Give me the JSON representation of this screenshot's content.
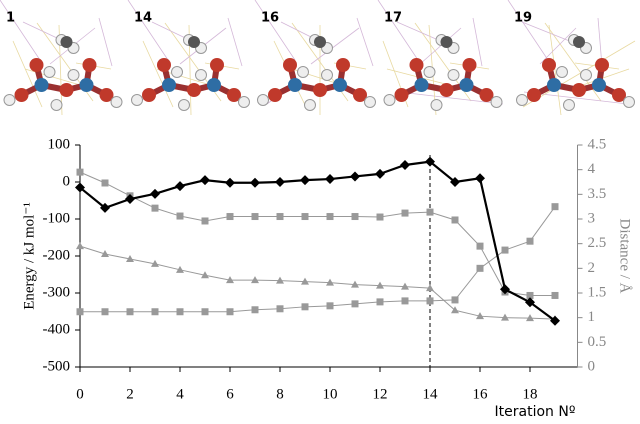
{
  "chart_data": {
    "type": "line",
    "panels": [
      "1",
      "14",
      "16",
      "17",
      "19"
    ],
    "ylabel": "Energy / kJ mol⁻¹",
    "y2label": "Distance / Å",
    "xlabel": "Iteration Nº",
    "x": [
      0,
      1,
      2,
      3,
      4,
      5,
      6,
      7,
      8,
      9,
      10,
      11,
      12,
      13,
      14,
      15,
      16,
      17,
      18,
      19
    ],
    "xlim": [
      0,
      19.9
    ],
    "xticks": [
      0,
      2,
      4,
      6,
      8,
      10,
      12,
      14,
      16,
      18
    ],
    "ylim": [
      -500,
      100
    ],
    "yticks": [
      -500,
      -400,
      -300,
      -200,
      -100,
      0,
      100
    ],
    "y2lim": [
      0,
      4.5
    ],
    "y2ticks": [
      0,
      0.5,
      1,
      1.5,
      2,
      2.5,
      3,
      3.5,
      4,
      4.5
    ],
    "vline": 14,
    "series": [
      {
        "color": "#000000",
        "marker": "diamond",
        "axis": "y",
        "values": [
          -15,
          -70,
          -46,
          -32,
          -11,
          5,
          -2,
          -2,
          0,
          5,
          8,
          15,
          22,
          46,
          55,
          0,
          10,
          -290,
          -325,
          -375
        ]
      },
      {
        "color": "#999999",
        "marker": "square",
        "axis": "y2",
        "values": [
          3.95,
          3.73,
          3.47,
          3.22,
          3.06,
          2.96,
          3.05,
          3.05,
          3.05,
          3.05,
          3.05,
          3.05,
          3.04,
          3.12,
          3.14,
          2.98,
          2.45,
          1.52,
          1.45,
          1.45
        ]
      },
      {
        "color": "#999999",
        "marker": "triangle",
        "axis": "y2",
        "values": [
          2.45,
          2.29,
          2.19,
          2.09,
          1.97,
          1.86,
          1.76,
          1.76,
          1.75,
          1.73,
          1.71,
          1.67,
          1.65,
          1.63,
          1.6,
          1.15,
          1.03,
          1.0,
          0.99,
          0.97
        ]
      },
      {
        "color": "#999999",
        "marker": "square",
        "axis": "y2",
        "values": [
          1.12,
          1.12,
          1.12,
          1.12,
          1.12,
          1.12,
          1.12,
          1.16,
          1.18,
          1.22,
          1.24,
          1.28,
          1.32,
          1.34,
          1.34,
          1.36,
          2.0,
          2.37,
          2.55,
          3.25
        ]
      }
    ]
  }
}
